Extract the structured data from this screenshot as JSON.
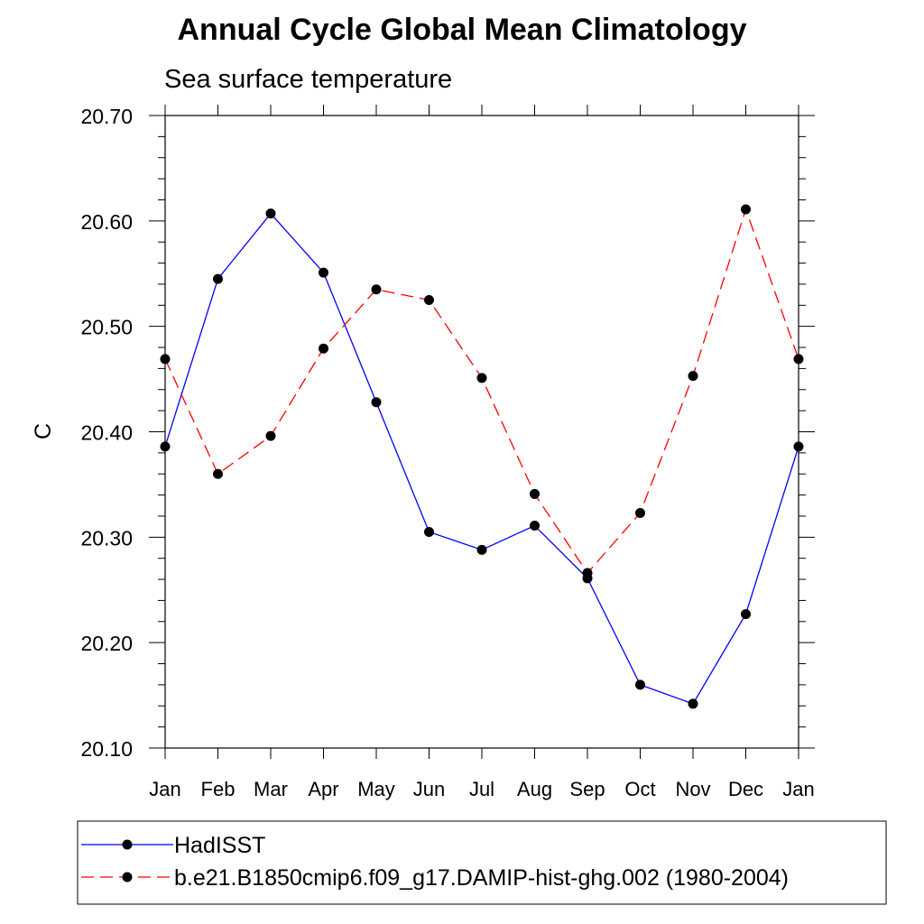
{
  "chart_data": {
    "type": "line",
    "title": "Annual Cycle Global Mean Climatology",
    "subtitle": "Sea surface temperature",
    "ylabel": "C",
    "xlabel": "",
    "ylim": [
      20.1,
      20.7
    ],
    "yticks": [
      "20.10",
      "20.20",
      "20.30",
      "20.40",
      "20.50",
      "20.60",
      "20.70"
    ],
    "categories": [
      "Jan",
      "Feb",
      "Mar",
      "Apr",
      "May",
      "Jun",
      "Jul",
      "Aug",
      "Sep",
      "Oct",
      "Nov",
      "Dec",
      "Jan"
    ],
    "series": [
      {
        "name": "HadISST",
        "color": "#0000ff",
        "dash": "solid",
        "values": [
          20.386,
          20.545,
          20.607,
          20.551,
          20.428,
          20.305,
          20.288,
          20.311,
          20.261,
          20.16,
          20.142,
          20.227,
          20.386
        ]
      },
      {
        "name": "b.e21.B1850cmip6.f09_g17.DAMIP-hist-ghg.002 (1980-2004)",
        "color": "#ff0000",
        "dash": "dashed",
        "values": [
          20.469,
          20.36,
          20.396,
          20.479,
          20.535,
          20.525,
          20.451,
          20.341,
          20.266,
          20.323,
          20.453,
          20.611,
          20.469
        ]
      }
    ],
    "grid": false,
    "legend_position": "bottom"
  }
}
